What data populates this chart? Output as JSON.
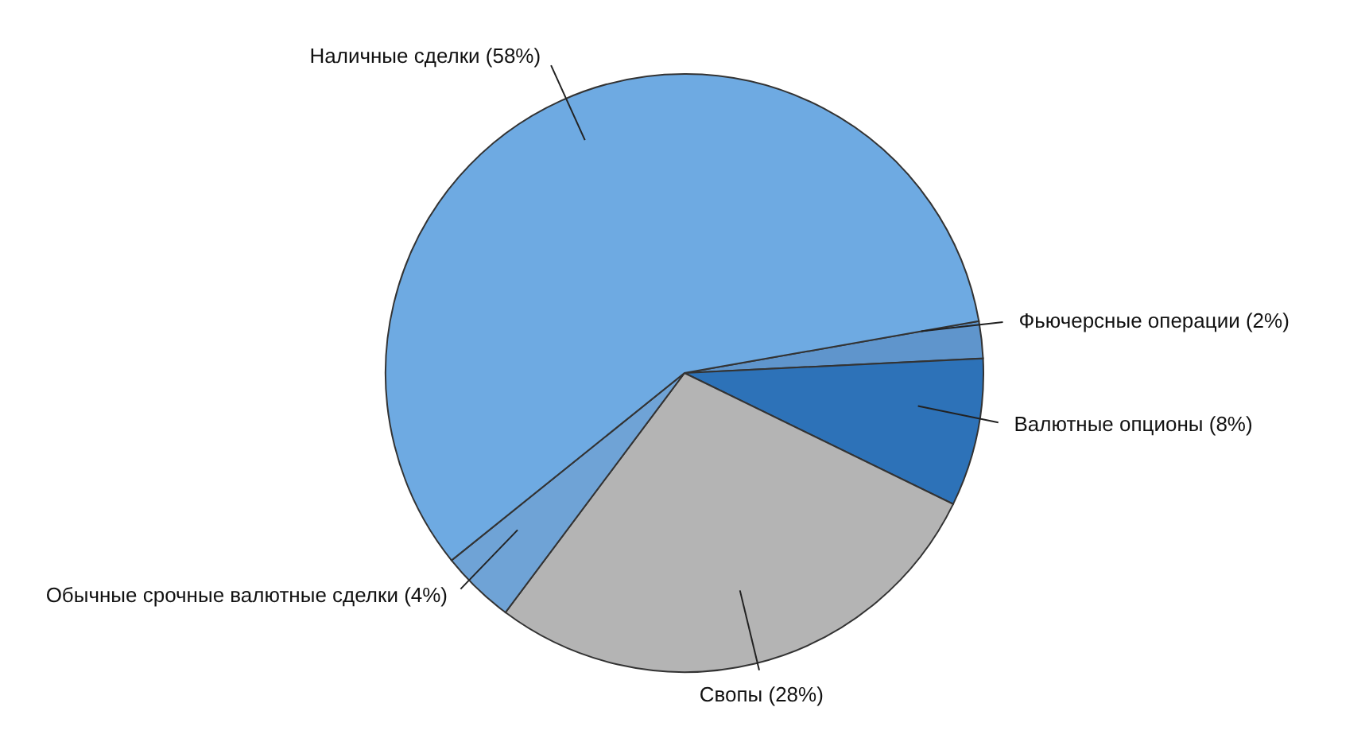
{
  "chart_data": {
    "type": "pie",
    "categories": [
      "Фьючерсные операции (2%)",
      "Валютные опционы (8%)",
      "Свопы (28%)",
      "Обычные срочные валютные сделки (4%)",
      "Наличные сделки (58%)"
    ],
    "values": [
      2,
      8,
      28,
      4,
      58
    ],
    "colors": [
      "#5f95cc",
      "#2d72b8",
      "#b4b4b4",
      "#6fa3d6",
      "#6eaae2"
    ]
  }
}
